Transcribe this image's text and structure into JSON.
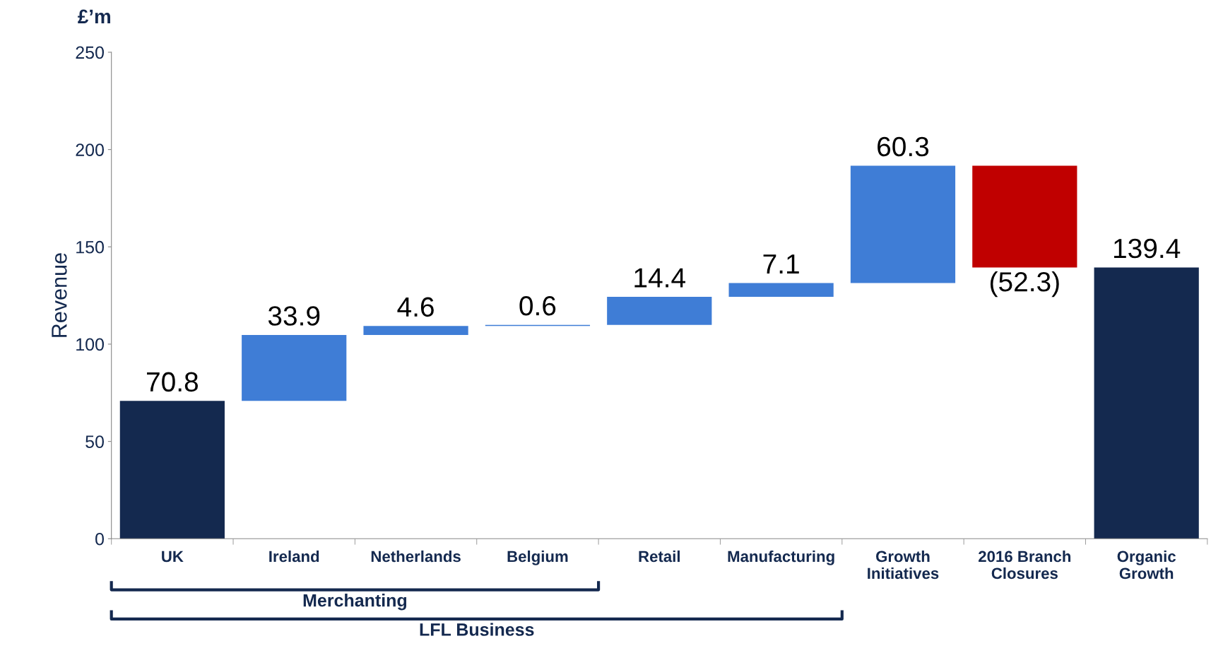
{
  "chart_data": {
    "type": "bar",
    "ylabel": "Revenue",
    "categories": [
      "UK",
      "Ireland",
      "Netherlands",
      "Belgium",
      "Retail",
      "Manufacturing",
      "Growth\nInitiatives",
      "2016 Branch\nClosures",
      "Organic\nGrowth"
    ],
    "values": [
      70.8,
      33.9,
      4.6,
      0.6,
      14.4,
      7.1,
      60.3,
      -52.3,
      139.4
    ],
    "base": [
      0,
      70.8,
      104.7,
      109.3,
      109.9,
      124.3,
      131.4,
      191.7,
      0
    ],
    "colors": [
      "#14294f",
      "#3f7dd6",
      "#3f7dd6",
      "#3f7dd6",
      "#3f7dd6",
      "#3f7dd6",
      "#3f7dd6",
      "#c00000",
      "#14294f"
    ],
    "value_labels": [
      "70.8",
      "33.9",
      "4.6",
      "0.6",
      "14.4",
      "7.1",
      "60.3",
      "(52.3)",
      "139.4"
    ],
    "ylim": [
      0,
      250
    ],
    "yticks": [
      0,
      50,
      100,
      150,
      200,
      250
    ],
    "grid": false,
    "legend": false,
    "annotations": [
      "£’m",
      "Merchanting",
      "LFL Business"
    ]
  }
}
